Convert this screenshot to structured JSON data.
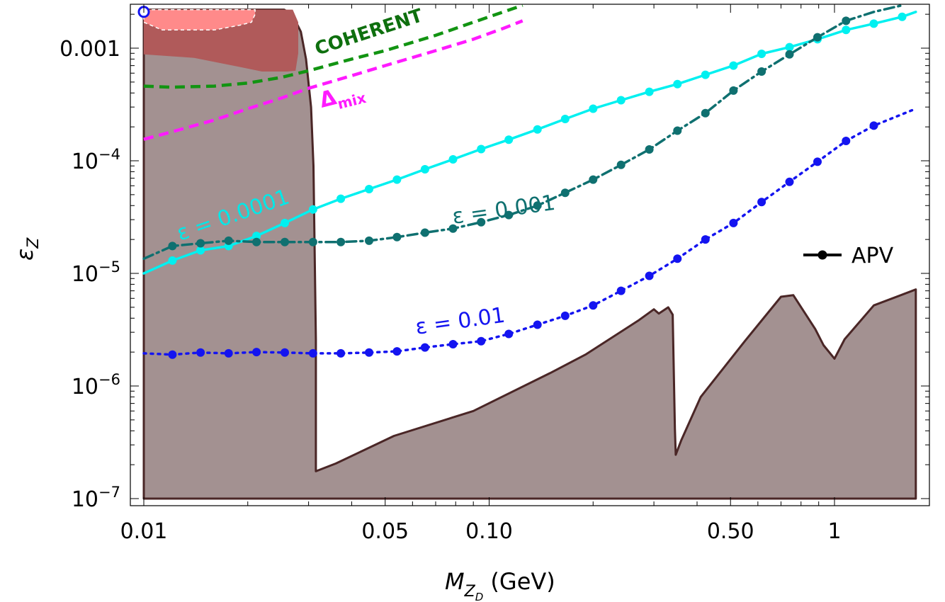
{
  "chart_data": {
    "type": "line",
    "title": "",
    "xlabel": "M",
    "xlabel_sub": "Z",
    "xlabel_subsub": "D",
    "xlabel_unit": " (GeV)",
    "ylabel": "ε",
    "ylabel_sub": "Z",
    "x_scale": "log",
    "y_scale": "log",
    "xlim": [
      0.0088,
      2.2
    ],
    "ylim": [
      1e-07,
      0.0022
    ],
    "x_ticks": [
      {
        "value": 0.01,
        "label": "0.01"
      },
      {
        "value": 0.05,
        "label": "0.05"
      },
      {
        "value": 0.1,
        "label": "0.10"
      },
      {
        "value": 0.5,
        "label": "0.50"
      },
      {
        "value": 1,
        "label": "1"
      }
    ],
    "y_ticks": [
      {
        "value": 1e-07,
        "base": "10",
        "exp": "−7",
        "label": ""
      },
      {
        "value": 1e-06,
        "base": "10",
        "exp": "−6",
        "label": ""
      },
      {
        "value": 1e-05,
        "base": "10",
        "exp": "−5",
        "label": ""
      },
      {
        "value": 0.0001,
        "base": "10",
        "exp": "−4",
        "label": ""
      },
      {
        "value": 0.001,
        "base": "",
        "exp": "",
        "label": "0.001"
      }
    ],
    "colors": {
      "excluded_fill": "#a39191",
      "excluded_edge": "#4a2626",
      "dark_red": "#b05a5a",
      "light_red": "#ff8a8a",
      "coherent": "#129412",
      "mix": "#ff1aff",
      "eps_1e4": "#00f0f0",
      "eps_1e3": "#0f7070",
      "eps_1e2": "#1414f0"
    },
    "excluded_region": [
      [
        0.01,
        1e-07
      ],
      [
        0.01,
        0.0022
      ],
      [
        0.0255,
        0.0022
      ],
      [
        0.027,
        0.00195
      ],
      [
        0.0285,
        0.0014
      ],
      [
        0.0295,
        0.0008
      ],
      [
        0.0305,
        0.0003
      ],
      [
        0.031,
        9e-05
      ],
      [
        0.0315,
        2.6e-06
      ],
      [
        0.0315,
        1.75e-07
      ],
      [
        0.036,
        2.05e-07
      ],
      [
        0.053,
        3.6e-07
      ],
      [
        0.09,
        6e-07
      ],
      [
        0.15,
        1.3e-06
      ],
      [
        0.19,
        1.9e-06
      ],
      [
        0.27,
        3.8e-06
      ],
      [
        0.3,
        4.8e-06
      ],
      [
        0.31,
        4.4e-06
      ],
      [
        0.33,
        5e-06
      ],
      [
        0.34,
        4.3e-06
      ],
      [
        0.345,
        4.2e-07
      ],
      [
        0.347,
        2.45e-07
      ],
      [
        0.36,
        3.3e-07
      ],
      [
        0.41,
        8e-07
      ],
      [
        0.55,
        2.5e-06
      ],
      [
        0.7,
        6.2e-06
      ],
      [
        0.76,
        6.4e-06
      ],
      [
        0.88,
        3.2e-06
      ],
      [
        0.93,
        2.3e-06
      ],
      [
        1.0,
        1.75e-06
      ],
      [
        1.07,
        2.6e-06
      ],
      [
        1.3,
        5.2e-06
      ],
      [
        1.72,
        7.2e-06
      ],
      [
        1.72,
        1e-07
      ]
    ],
    "dark_red_region": [
      [
        0.01,
        0.00088
      ],
      [
        0.014,
        0.00082
      ],
      [
        0.019,
        0.00068
      ],
      [
        0.022,
        0.00062
      ],
      [
        0.026,
        0.00062
      ],
      [
        0.0275,
        0.00063
      ],
      [
        0.028,
        0.0009
      ],
      [
        0.028,
        0.0017
      ],
      [
        0.027,
        0.0022
      ],
      [
        0.01,
        0.0022
      ]
    ],
    "light_red_region": [
      [
        0.01,
        0.0022
      ],
      [
        0.01,
        0.0017
      ],
      [
        0.0113,
        0.00145
      ],
      [
        0.016,
        0.00145
      ],
      [
        0.019,
        0.0016
      ],
      [
        0.0205,
        0.0017
      ],
      [
        0.021,
        0.002
      ],
      [
        0.021,
        0.0022
      ]
    ],
    "coherent_curve": [
      [
        0.01,
        0.00046
      ],
      [
        0.012,
        0.00045
      ],
      [
        0.016,
        0.00046
      ],
      [
        0.02,
        0.00049
      ],
      [
        0.025,
        0.00055
      ],
      [
        0.03,
        0.00063
      ],
      [
        0.04,
        0.0008
      ],
      [
        0.05,
        0.00095
      ],
      [
        0.07,
        0.0013
      ],
      [
        0.09,
        0.0017
      ],
      [
        0.11,
        0.0021
      ],
      [
        0.125,
        0.0024
      ]
    ],
    "mix_curve": [
      [
        0.01,
        0.000155
      ],
      [
        0.012,
        0.00018
      ],
      [
        0.016,
        0.00023
      ],
      [
        0.02,
        0.00029
      ],
      [
        0.025,
        0.00036
      ],
      [
        0.03,
        0.00044
      ],
      [
        0.04,
        0.00057
      ],
      [
        0.05,
        0.0007
      ],
      [
        0.07,
        0.00095
      ],
      [
        0.09,
        0.0012
      ],
      [
        0.11,
        0.0015
      ],
      [
        0.125,
        0.00175
      ]
    ],
    "apv_legend": "APV",
    "series": [
      {
        "name": "ε = 0.0001",
        "style": "solid",
        "points": [
          [
            0.01,
            1e-05
          ],
          [
            0.0121,
            1.3e-05
          ],
          [
            0.0146,
            1.6e-05
          ],
          [
            0.0176,
            1.75e-05
          ],
          [
            0.0212,
            2.15e-05
          ],
          [
            0.0256,
            2.8e-05
          ],
          [
            0.0309,
            3.7e-05
          ],
          [
            0.0372,
            4.6e-05
          ],
          [
            0.0449,
            5.6e-05
          ],
          [
            0.0541,
            6.8e-05
          ],
          [
            0.0652,
            8.4e-05
          ],
          [
            0.0786,
            0.000103
          ],
          [
            0.0948,
            0.000127
          ],
          [
            0.114,
            0.000154
          ],
          [
            0.138,
            0.00019
          ],
          [
            0.166,
            0.000235
          ],
          [
            0.2,
            0.00029
          ],
          [
            0.241,
            0.000345
          ],
          [
            0.291,
            0.00041
          ],
          [
            0.351,
            0.00048
          ],
          [
            0.423,
            0.00058
          ],
          [
            0.51,
            0.0007
          ],
          [
            0.615,
            0.00089
          ],
          [
            0.741,
            0.00102
          ],
          [
            0.893,
            0.0012
          ],
          [
            1.08,
            0.00145
          ],
          [
            1.3,
            0.00165
          ],
          [
            1.57,
            0.0019
          ],
          [
            1.72,
            0.0021
          ]
        ],
        "markers": [
          [
            0.0121,
            1.3e-05
          ],
          [
            0.0146,
            1.6e-05
          ],
          [
            0.0176,
            1.75e-05
          ],
          [
            0.0212,
            2.15e-05
          ],
          [
            0.0256,
            2.8e-05
          ],
          [
            0.0309,
            3.7e-05
          ],
          [
            0.0372,
            4.6e-05
          ],
          [
            0.0449,
            5.6e-05
          ],
          [
            0.0541,
            6.8e-05
          ],
          [
            0.0652,
            8.4e-05
          ],
          [
            0.0786,
            0.000103
          ],
          [
            0.0948,
            0.000127
          ],
          [
            0.114,
            0.000154
          ],
          [
            0.138,
            0.00019
          ],
          [
            0.166,
            0.000235
          ],
          [
            0.2,
            0.00029
          ],
          [
            0.241,
            0.000345
          ],
          [
            0.291,
            0.00041
          ],
          [
            0.351,
            0.00048
          ],
          [
            0.423,
            0.00058
          ],
          [
            0.51,
            0.0007
          ],
          [
            0.615,
            0.00089
          ],
          [
            0.741,
            0.00102
          ],
          [
            0.893,
            0.0012
          ],
          [
            1.08,
            0.00145
          ],
          [
            1.3,
            0.00165
          ],
          [
            1.57,
            0.0019
          ]
        ]
      },
      {
        "name": "ε = 0.001",
        "style": "dashdot",
        "points": [
          [
            0.01,
            1.35e-05
          ],
          [
            0.0121,
            1.75e-05
          ],
          [
            0.0146,
            1.85e-05
          ],
          [
            0.0176,
            1.95e-05
          ],
          [
            0.0212,
            1.9e-05
          ],
          [
            0.0256,
            1.9e-05
          ],
          [
            0.0309,
            1.9e-05
          ],
          [
            0.0372,
            1.9e-05
          ],
          [
            0.0449,
            1.95e-05
          ],
          [
            0.0541,
            2.1e-05
          ],
          [
            0.0652,
            2.3e-05
          ],
          [
            0.0786,
            2.5e-05
          ],
          [
            0.0948,
            2.85e-05
          ],
          [
            0.114,
            3.3e-05
          ],
          [
            0.138,
            4e-05
          ],
          [
            0.166,
            5.2e-05
          ],
          [
            0.2,
            6.8e-05
          ],
          [
            0.241,
            9.2e-05
          ],
          [
            0.291,
            0.000126
          ],
          [
            0.351,
            0.000185
          ],
          [
            0.423,
            0.000265
          ],
          [
            0.51,
            0.00042
          ],
          [
            0.615,
            0.00062
          ],
          [
            0.741,
            0.00088
          ],
          [
            0.893,
            0.00125
          ],
          [
            1.08,
            0.00175
          ],
          [
            1.3,
            0.0021
          ],
          [
            1.57,
            0.0024
          ]
        ],
        "markers": [
          [
            0.0121,
            1.75e-05
          ],
          [
            0.0146,
            1.85e-05
          ],
          [
            0.0176,
            1.95e-05
          ],
          [
            0.0212,
            1.9e-05
          ],
          [
            0.0256,
            1.9e-05
          ],
          [
            0.0309,
            1.9e-05
          ],
          [
            0.0372,
            1.9e-05
          ],
          [
            0.0449,
            1.95e-05
          ],
          [
            0.0541,
            2.1e-05
          ],
          [
            0.0652,
            2.3e-05
          ],
          [
            0.0786,
            2.5e-05
          ],
          [
            0.0948,
            2.85e-05
          ],
          [
            0.114,
            3.3e-05
          ],
          [
            0.138,
            4e-05
          ],
          [
            0.166,
            5.2e-05
          ],
          [
            0.2,
            6.8e-05
          ],
          [
            0.241,
            9.2e-05
          ],
          [
            0.291,
            0.000126
          ],
          [
            0.351,
            0.000185
          ],
          [
            0.423,
            0.000265
          ],
          [
            0.51,
            0.00042
          ],
          [
            0.615,
            0.00062
          ],
          [
            0.741,
            0.00088
          ],
          [
            0.893,
            0.00125
          ],
          [
            1.08,
            0.00175
          ]
        ]
      },
      {
        "name": "ε = 0.01",
        "style": "dotted",
        "points": [
          [
            0.01,
            1.95e-06
          ],
          [
            0.0121,
            1.9e-06
          ],
          [
            0.0146,
            1.98e-06
          ],
          [
            0.0176,
            1.95e-06
          ],
          [
            0.0212,
            2e-06
          ],
          [
            0.0256,
            1.98e-06
          ],
          [
            0.0309,
            1.95e-06
          ],
          [
            0.0372,
            1.95e-06
          ],
          [
            0.0449,
            1.98e-06
          ],
          [
            0.0541,
            2.03e-06
          ],
          [
            0.0652,
            2.2e-06
          ],
          [
            0.0786,
            2.35e-06
          ],
          [
            0.0948,
            2.5e-06
          ],
          [
            0.114,
            2.9e-06
          ],
          [
            0.138,
            3.5e-06
          ],
          [
            0.166,
            4.2e-06
          ],
          [
            0.2,
            5.2e-06
          ],
          [
            0.241,
            7e-06
          ],
          [
            0.291,
            9.5e-06
          ],
          [
            0.351,
            1.35e-05
          ],
          [
            0.423,
            2e-05
          ],
          [
            0.51,
            2.8e-05
          ],
          [
            0.615,
            4.3e-05
          ],
          [
            0.741,
            6.5e-05
          ],
          [
            0.893,
            9.8e-05
          ],
          [
            1.08,
            0.00015
          ],
          [
            1.3,
            0.000205
          ],
          [
            1.72,
            0.00029
          ]
        ],
        "markers": [
          [
            0.0121,
            1.9e-06
          ],
          [
            0.0146,
            1.98e-06
          ],
          [
            0.0176,
            1.95e-06
          ],
          [
            0.0212,
            2e-06
          ],
          [
            0.0256,
            1.98e-06
          ],
          [
            0.0309,
            1.95e-06
          ],
          [
            0.0372,
            1.95e-06
          ],
          [
            0.0449,
            1.98e-06
          ],
          [
            0.0541,
            2.03e-06
          ],
          [
            0.0652,
            2.2e-06
          ],
          [
            0.0786,
            2.35e-06
          ],
          [
            0.0948,
            2.5e-06
          ],
          [
            0.114,
            2.9e-06
          ],
          [
            0.138,
            3.5e-06
          ],
          [
            0.166,
            4.2e-06
          ],
          [
            0.2,
            5.2e-06
          ],
          [
            0.241,
            7e-06
          ],
          [
            0.291,
            9.5e-06
          ],
          [
            0.351,
            1.35e-05
          ],
          [
            0.423,
            2e-05
          ],
          [
            0.51,
            2.8e-05
          ],
          [
            0.615,
            4.3e-05
          ],
          [
            0.741,
            6.5e-05
          ],
          [
            0.893,
            9.8e-05
          ],
          [
            1.08,
            0.00015
          ],
          [
            1.3,
            0.000205
          ]
        ]
      }
    ],
    "annotations": {
      "coherent": "COHERENT",
      "mix_main": "Δ",
      "mix_sub": "mix",
      "eps_1e4": "ε = 0.0001",
      "eps_1e3": "ε = 0.001",
      "eps_1e2": "ε = 0.01"
    },
    "open_marker": [
      0.01,
      0.0021
    ]
  }
}
